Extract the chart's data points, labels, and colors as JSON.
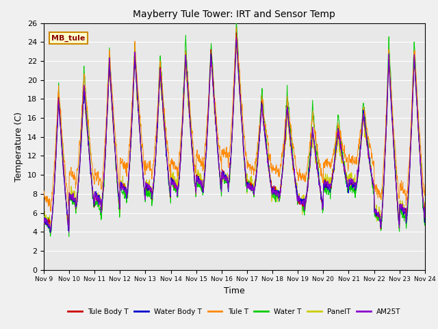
{
  "title": "Mayberry Tule Tower: IRT and Sensor Temp",
  "xlabel": "Time",
  "ylabel": "Temperature (C)",
  "ylim": [
    0,
    26
  ],
  "xlim": [
    0,
    15
  ],
  "figsize": [
    6.4,
    4.8
  ],
  "dpi": 100,
  "series": {
    "tule_body_t": {
      "label": "Tule Body T",
      "color": "#cc0000"
    },
    "water_body_t": {
      "label": "Water Body T",
      "color": "#0000cc"
    },
    "tule_t": {
      "label": "Tule T",
      "color": "#ff8800"
    },
    "water_t": {
      "label": "Water T",
      "color": "#00cc00"
    },
    "panel_t": {
      "label": "PanelT",
      "color": "#cccc00"
    },
    "am25t": {
      "label": "AM25T",
      "color": "#8800cc"
    }
  },
  "x_tick_labels": [
    "Nov 9",
    "Nov 10",
    "Nov 11",
    "Nov 12",
    "Nov 13",
    "Nov 14",
    "Nov 15",
    "Nov 16",
    "Nov 17",
    "Nov 18",
    "Nov 19",
    "Nov 20",
    "Nov 21",
    "Nov 22",
    "Nov 23",
    "Nov 24"
  ],
  "y_ticks": [
    0,
    2,
    4,
    6,
    8,
    10,
    12,
    14,
    16,
    18,
    20,
    22,
    24,
    26
  ],
  "annotation": "MB_tule",
  "annotation_bg": "#ffffcc",
  "annotation_border": "#cc8800",
  "fig_bg": "#f0f0f0",
  "ax_bg": "#e8e8e8",
  "grid_color": "#ffffff",
  "lw": 0.7,
  "peak_heights": [
    18.5,
    20.0,
    22.5,
    23.2,
    21.5,
    23.0,
    23.2,
    25.0,
    18.0,
    17.5,
    15.5,
    15.0,
    17.0,
    23.0
  ],
  "trough_vals": [
    3.8,
    6.5,
    6.3,
    7.5,
    7.5,
    7.8,
    8.0,
    8.5,
    8.0,
    7.5,
    6.5,
    8.5,
    8.5,
    4.5,
    5.0
  ]
}
